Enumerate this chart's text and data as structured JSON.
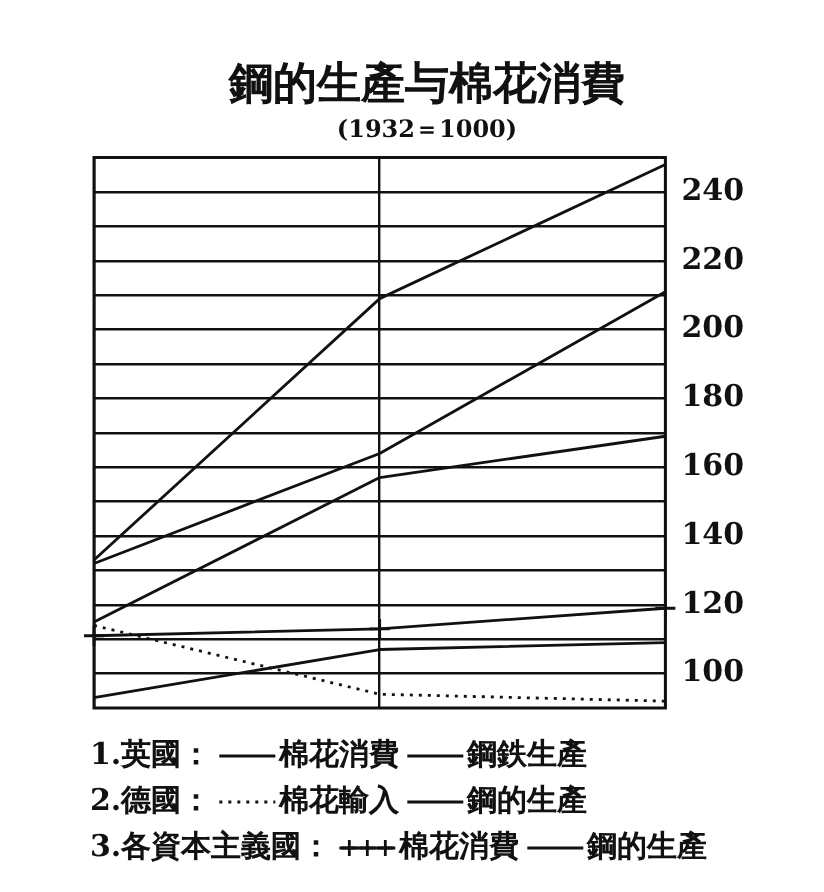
{
  "chart_data": {
    "type": "line",
    "title": "鋼的生產与棉花消費",
    "subtitle": "(1932＝1000)",
    "categories": [
      null,
      null,
      null
    ],
    "series": [
      {
        "name": "棉花消費",
        "color": "#111111",
        "values": [
          93,
          107,
          109
        ]
      },
      {
        "name": "鋼鉄生產",
        "color": "#111111",
        "values": [
          115,
          157,
          169
        ]
      },
      {
        "name": "棉花輸入",
        "color": "#111111",
        "values": [
          114,
          94,
          92
        ],
        "line_style": "dotted"
      },
      {
        "name": "鋼的生產",
        "color": "#111111",
        "values": [
          133,
          209,
          248
        ]
      },
      {
        "name": "棉花消費",
        "color": "#111111",
        "values": [
          111,
          113,
          119
        ],
        "marker": "cross"
      },
      {
        "name": "鋼的生產",
        "color": "#111111",
        "values": [
          132,
          164,
          211
        ]
      }
    ],
    "ylim": [
      90,
      250
    ],
    "yticks": [
      100,
      {
        "value": 110,
        "label": null
      },
      120,
      {
        "value": 130,
        "label": null
      },
      140,
      {
        "value": 150,
        "label": null
      },
      160,
      {
        "value": 170,
        "label": null
      },
      180,
      {
        "value": 190,
        "label": null
      },
      200,
      {
        "value": 210,
        "label": null
      },
      220,
      {
        "value": 230,
        "label": null
      },
      240
    ],
    "grid": true,
    "legend": "bottom",
    "tick_labels": "y",
    "marker": "none",
    "line_style": "solid",
    "annotations": [
      "1.英國：",
      "2.德國：",
      "3.各資本主義國："
    ]
  }
}
